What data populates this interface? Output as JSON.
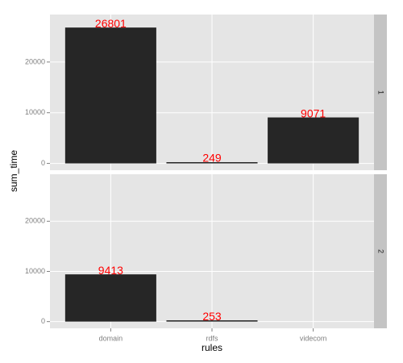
{
  "chart_data": {
    "type": "bar",
    "x_label": "rules",
    "y_label": "sum_time",
    "categories": [
      "domain",
      "rdfs",
      "videcom"
    ],
    "facets": [
      {
        "name": "1",
        "values": [
          26801,
          249,
          9071
        ]
      },
      {
        "name": "2",
        "values": [
          9413,
          253,
          null
        ]
      }
    ],
    "color": "#262626",
    "value_label_color": "#ff0000",
    "ylim": [
      -1340,
      29370
    ],
    "yticks": [
      0,
      10000,
      20000
    ],
    "grid": true
  }
}
